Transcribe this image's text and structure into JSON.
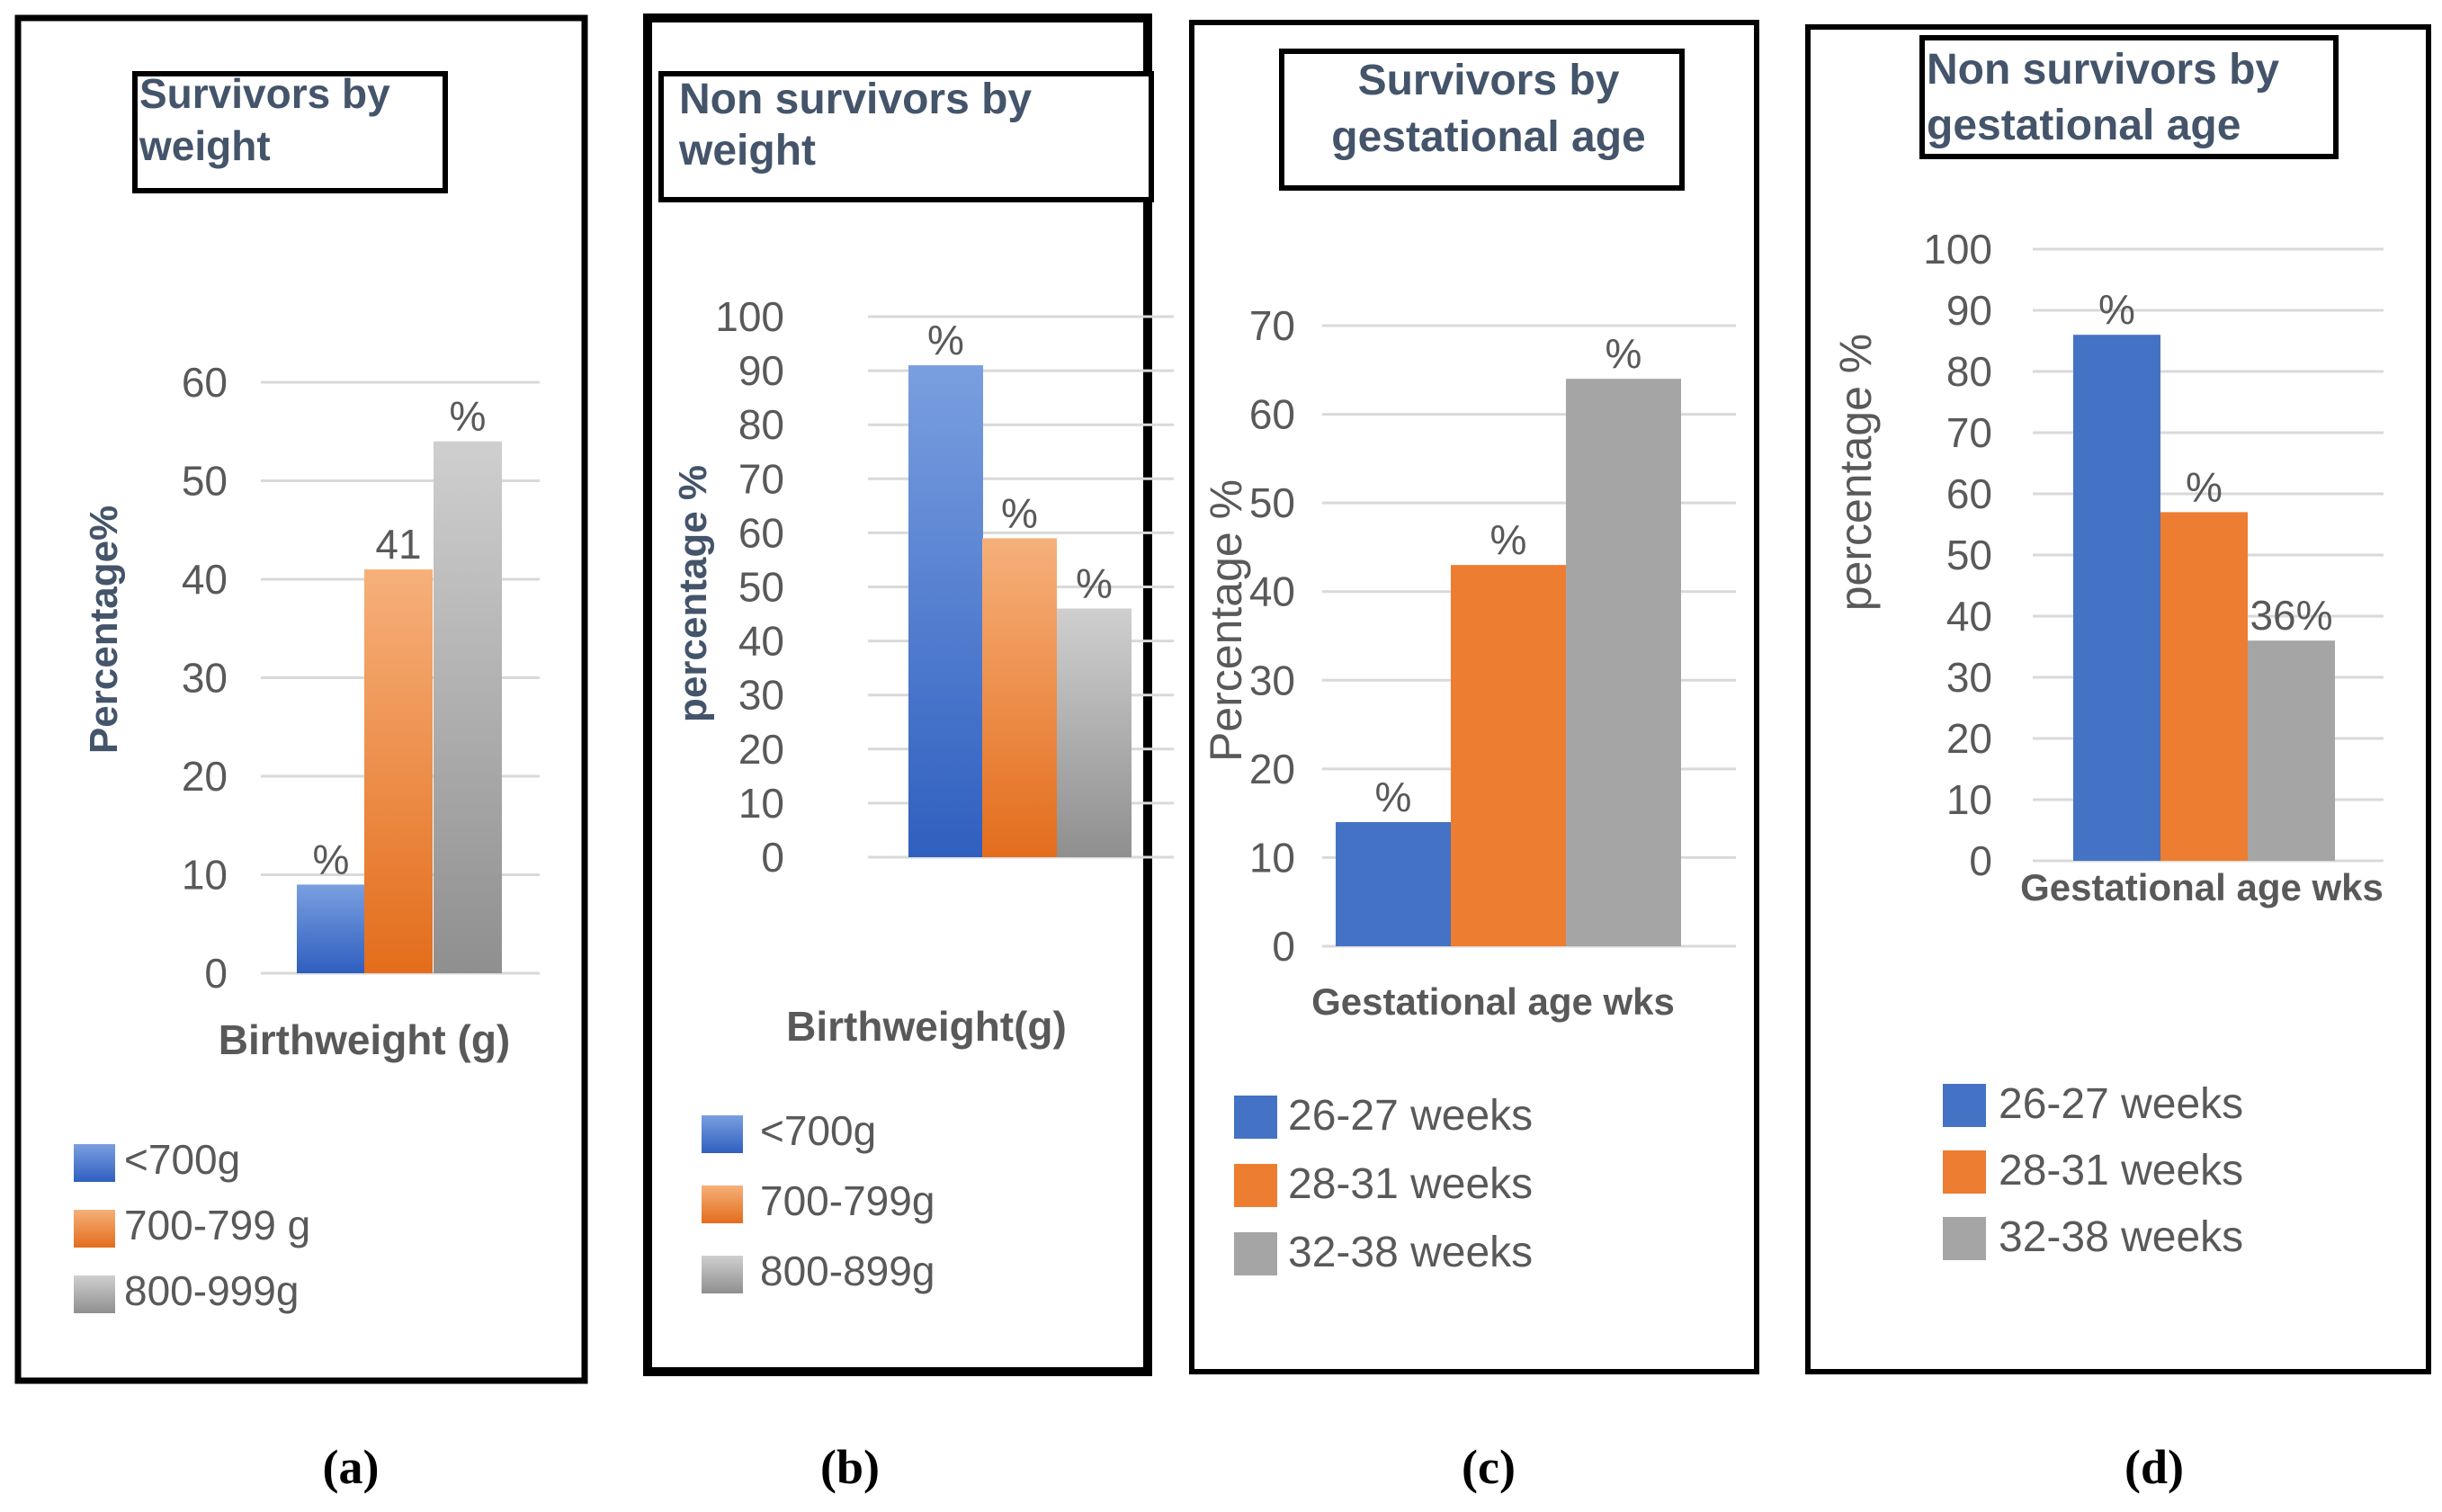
{
  "chart_data": [
    {
      "type": "bar",
      "panel": "(a)",
      "title": "Survivors by weight",
      "xlabel": "Birthweight (g)",
      "ylabel": "Percentage%",
      "ylim": [
        0,
        60
      ],
      "yticks": [
        0,
        10,
        20,
        30,
        40,
        50,
        60
      ],
      "series": [
        {
          "name": "<700g",
          "value": 9,
          "label": "%",
          "color": "blue"
        },
        {
          "name": "700-799 g",
          "value": 41,
          "label": "41",
          "color": "orange"
        },
        {
          "name": "800-999g",
          "value": 54,
          "label": "%",
          "color": "gray"
        }
      ]
    },
    {
      "type": "bar",
      "panel": "(b)",
      "title": "Non survivors by weight",
      "xlabel": "Birthweight(g)",
      "ylabel": "percentage %",
      "ylim": [
        0,
        100
      ],
      "yticks": [
        0,
        10,
        20,
        30,
        40,
        50,
        60,
        70,
        80,
        90,
        100
      ],
      "series": [
        {
          "name": "<700g",
          "value": 91,
          "label": "%",
          "color": "blue"
        },
        {
          "name": "700-799g",
          "value": 59,
          "label": "%",
          "color": "orange"
        },
        {
          "name": "800-899g",
          "value": 46,
          "label": "%",
          "color": "gray"
        }
      ]
    },
    {
      "type": "bar",
      "panel": "(c)",
      "title": "Survivors by gestational age",
      "xlabel": "Gestational age wks",
      "ylabel": "Percentage %",
      "ylim": [
        0,
        70
      ],
      "yticks": [
        0,
        10,
        20,
        30,
        40,
        50,
        60,
        70
      ],
      "series": [
        {
          "name": "26-27 weeks",
          "value": 14,
          "label": "%",
          "color": "blue"
        },
        {
          "name": "28-31 weeks",
          "value": 43,
          "label": "%",
          "color": "orange"
        },
        {
          "name": "32-38 weeks",
          "value": 64,
          "label": "%",
          "color": "gray"
        }
      ]
    },
    {
      "type": "bar",
      "panel": "(d)",
      "title": "Non survivors by gestational age",
      "xlabel": "Gestational age wks",
      "ylabel": "percentage %",
      "ylim": [
        0,
        100
      ],
      "yticks": [
        0,
        10,
        20,
        30,
        40,
        50,
        60,
        70,
        80,
        90,
        100
      ],
      "series": [
        {
          "name": "26-27 weeks",
          "value": 86,
          "label": "%",
          "color": "blue"
        },
        {
          "name": "28-31 weeks",
          "value": 57,
          "label": "%",
          "color": "orange"
        },
        {
          "name": "32-38 weeks",
          "value": 36,
          "label": "36%",
          "color": "gray"
        }
      ]
    }
  ],
  "colors": {
    "blue": "#4472c4",
    "orange": "#ed7d31",
    "gray": "#a5a5a5",
    "title_text": "#44546a",
    "tick_text": "#595959",
    "grid": "#d9d9d9",
    "frame": "#000000"
  }
}
